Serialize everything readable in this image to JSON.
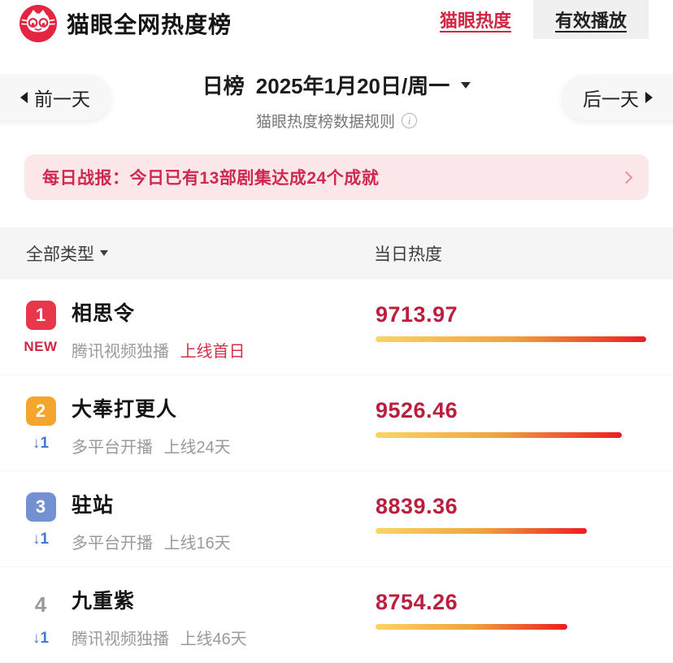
{
  "colors": {
    "accent_red": "#cf2743",
    "value_red": "#bb1f3e",
    "banner_bg": "#fbe7ea",
    "banner_text": "#ce2950",
    "bar_gradient_from": "#f8d565",
    "bar_gradient_to": "#ec1c24",
    "trend_blue": "#4579cd",
    "badges": {
      "red": "#e8374a",
      "orange": "#f5a42c",
      "blue": "#7391d0"
    }
  },
  "header": {
    "title": "猫眼全网热度榜",
    "logo": "maoyan-cat-logo",
    "tabs": [
      {
        "label": "猫眼热度",
        "active": true
      },
      {
        "label": "有效播放",
        "active": false
      }
    ]
  },
  "date_nav": {
    "prev": "前一天",
    "next": "后一天",
    "list_type": "日榜",
    "date": "2025年1月20日/周一",
    "rules": "猫眼热度榜数据规则"
  },
  "banner": {
    "text": "每日战报：今日已有13部剧集达成24个成就"
  },
  "filter": {
    "type": "全部类型",
    "heat_header": "当日热度"
  },
  "ranking": [
    {
      "rank": "1",
      "badge_color": "red",
      "trend": "NEW",
      "trend_style": "new",
      "title": "相思令",
      "platform": "腾讯视频独播",
      "days": "上线首日",
      "days_highlight": true,
      "heat": "9713.97",
      "bar_percent": 100
    },
    {
      "rank": "2",
      "badge_color": "orange",
      "trend": "↓1",
      "trend_style": "down",
      "title": "大奉打更人",
      "platform": "多平台开播",
      "days": "上线24天",
      "days_highlight": false,
      "heat": "9526.46",
      "bar_percent": 91
    },
    {
      "rank": "3",
      "badge_color": "blue",
      "trend": "↓1",
      "trend_style": "down",
      "title": "驻站",
      "platform": "多平台开播",
      "days": "上线16天",
      "days_highlight": false,
      "heat": "8839.36",
      "bar_percent": 78
    },
    {
      "rank": "4",
      "badge_color": "none",
      "trend": "↓1",
      "trend_style": "down",
      "title": "九重紫",
      "platform": "腾讯视频独播",
      "days": "上线46天",
      "days_highlight": false,
      "heat": "8754.26",
      "bar_percent": 71
    }
  ]
}
